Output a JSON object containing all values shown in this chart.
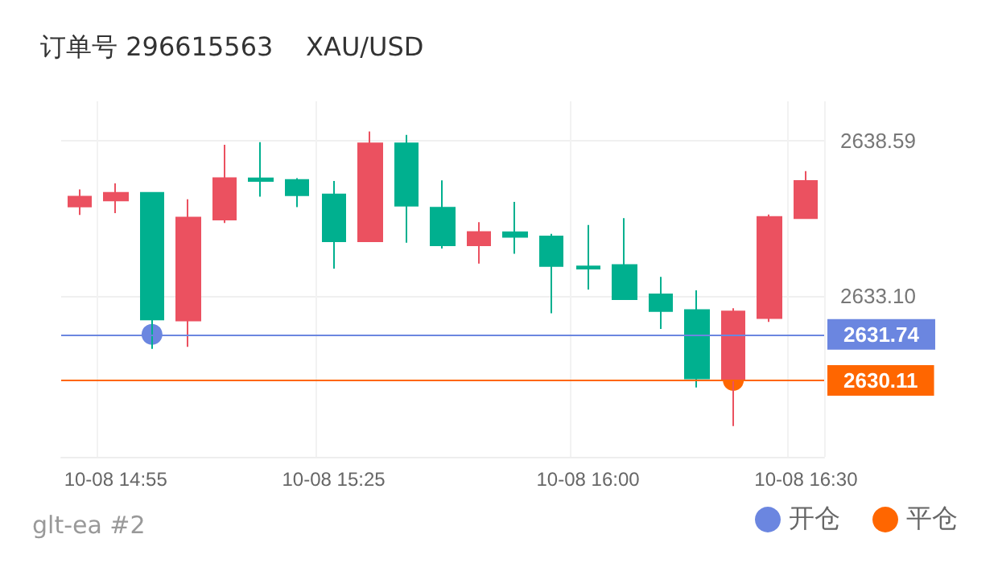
{
  "chart_data": {
    "type": "candlestick",
    "title": "订单号 296615563    XAU/USD",
    "categories": [
      null,
      "10-08 14:55",
      null,
      null,
      null,
      null,
      null,
      "10-08 15:25",
      null,
      null,
      null,
      null,
      null,
      null,
      "10-08 16:00",
      null,
      null,
      null,
      null,
      null,
      "10-08 16:30"
    ],
    "ohlc": [
      [
        2636.27,
        2636.88,
        2635.97,
        2636.62
      ],
      [
        2636.49,
        2637.09,
        2636.04,
        2636.76
      ],
      [
        2636.76,
        2636.76,
        2631.23,
        2632.27
      ],
      [
        2632.23,
        2636.53,
        2631.3,
        2635.88
      ],
      [
        2635.81,
        2638.46,
        2635.69,
        2637.28
      ],
      [
        2637.27,
        2638.55,
        2636.62,
        2637.18
      ],
      [
        2637.21,
        2637.28,
        2636.25,
        2636.67
      ],
      [
        2636.7,
        2637.18,
        2634.07,
        2635.04
      ],
      [
        2635.04,
        2638.93,
        2635.04,
        2638.51
      ],
      [
        2638.51,
        2638.81,
        2634.99,
        2636.3
      ],
      [
        2636.23,
        2637.2,
        2634.78,
        2634.9
      ],
      [
        2634.9,
        2635.72,
        2634.25,
        2635.37
      ],
      [
        2635.36,
        2636.44,
        2634.6,
        2635.2
      ],
      [
        2635.21,
        2635.3,
        2632.49,
        2634.16
      ],
      [
        2634.15,
        2635.62,
        2633.33,
        2634.07
      ],
      [
        2634.2,
        2635.86,
        2632.99,
        2632.99
      ],
      [
        2633.16,
        2633.78,
        2631.93,
        2632.57
      ],
      [
        2632.6,
        2633.3,
        2629.86,
        2630.18
      ],
      [
        2630.12,
        2632.67,
        2628.49,
        2632.55
      ],
      [
        2632.32,
        2635.99,
        2632.18,
        2635.9
      ],
      [
        2635.86,
        2637.53,
        2635.86,
        2637.18
      ]
    ],
    "colors": [
      "#eb5160",
      "#eb5160",
      "#00b08f",
      "#eb5160",
      "#eb5160",
      "#00b08f",
      "#00b08f",
      "#00b08f",
      "#eb5160",
      "#00b08f",
      "#00b08f",
      "#eb5160",
      "#00b08f",
      "#00b08f",
      "#00b08f",
      "#00b08f",
      "#00b08f",
      "#00b08f",
      "#eb5160",
      "#eb5160",
      "#eb5160"
    ],
    "series": [
      {
        "type": "scatter",
        "name": "开仓",
        "color": "#6b86e0",
        "values": [
          null,
          null,
          2631.74,
          null,
          null,
          null,
          null,
          null,
          null,
          null,
          null,
          null,
          null,
          null,
          null,
          null,
          null,
          null,
          null,
          null,
          null
        ]
      },
      {
        "type": "scatter",
        "name": "平仓",
        "color": "#ff6600",
        "values": [
          null,
          null,
          null,
          null,
          null,
          null,
          null,
          null,
          null,
          null,
          null,
          null,
          null,
          null,
          null,
          null,
          null,
          null,
          2630.11,
          null,
          null
        ]
      }
    ],
    "ref_lines": [
      {
        "axis": "y",
        "value": 2631.74,
        "label": "2631.74",
        "color": "#6b86e0"
      },
      {
        "axis": "y",
        "value": 2630.11,
        "label": "2630.11",
        "color": "#ff6600"
      }
    ],
    "ylim": [
      2627.4,
      2640.0
    ],
    "yticks": [
      {
        "value": 2638.59,
        "label": "2638.59"
      },
      {
        "value": 2633.1,
        "label": "2633.10"
      }
    ],
    "grid": true,
    "legend": "bottom right",
    "marker": "circle",
    "annotations": [
      "glt-ea #2"
    ]
  }
}
